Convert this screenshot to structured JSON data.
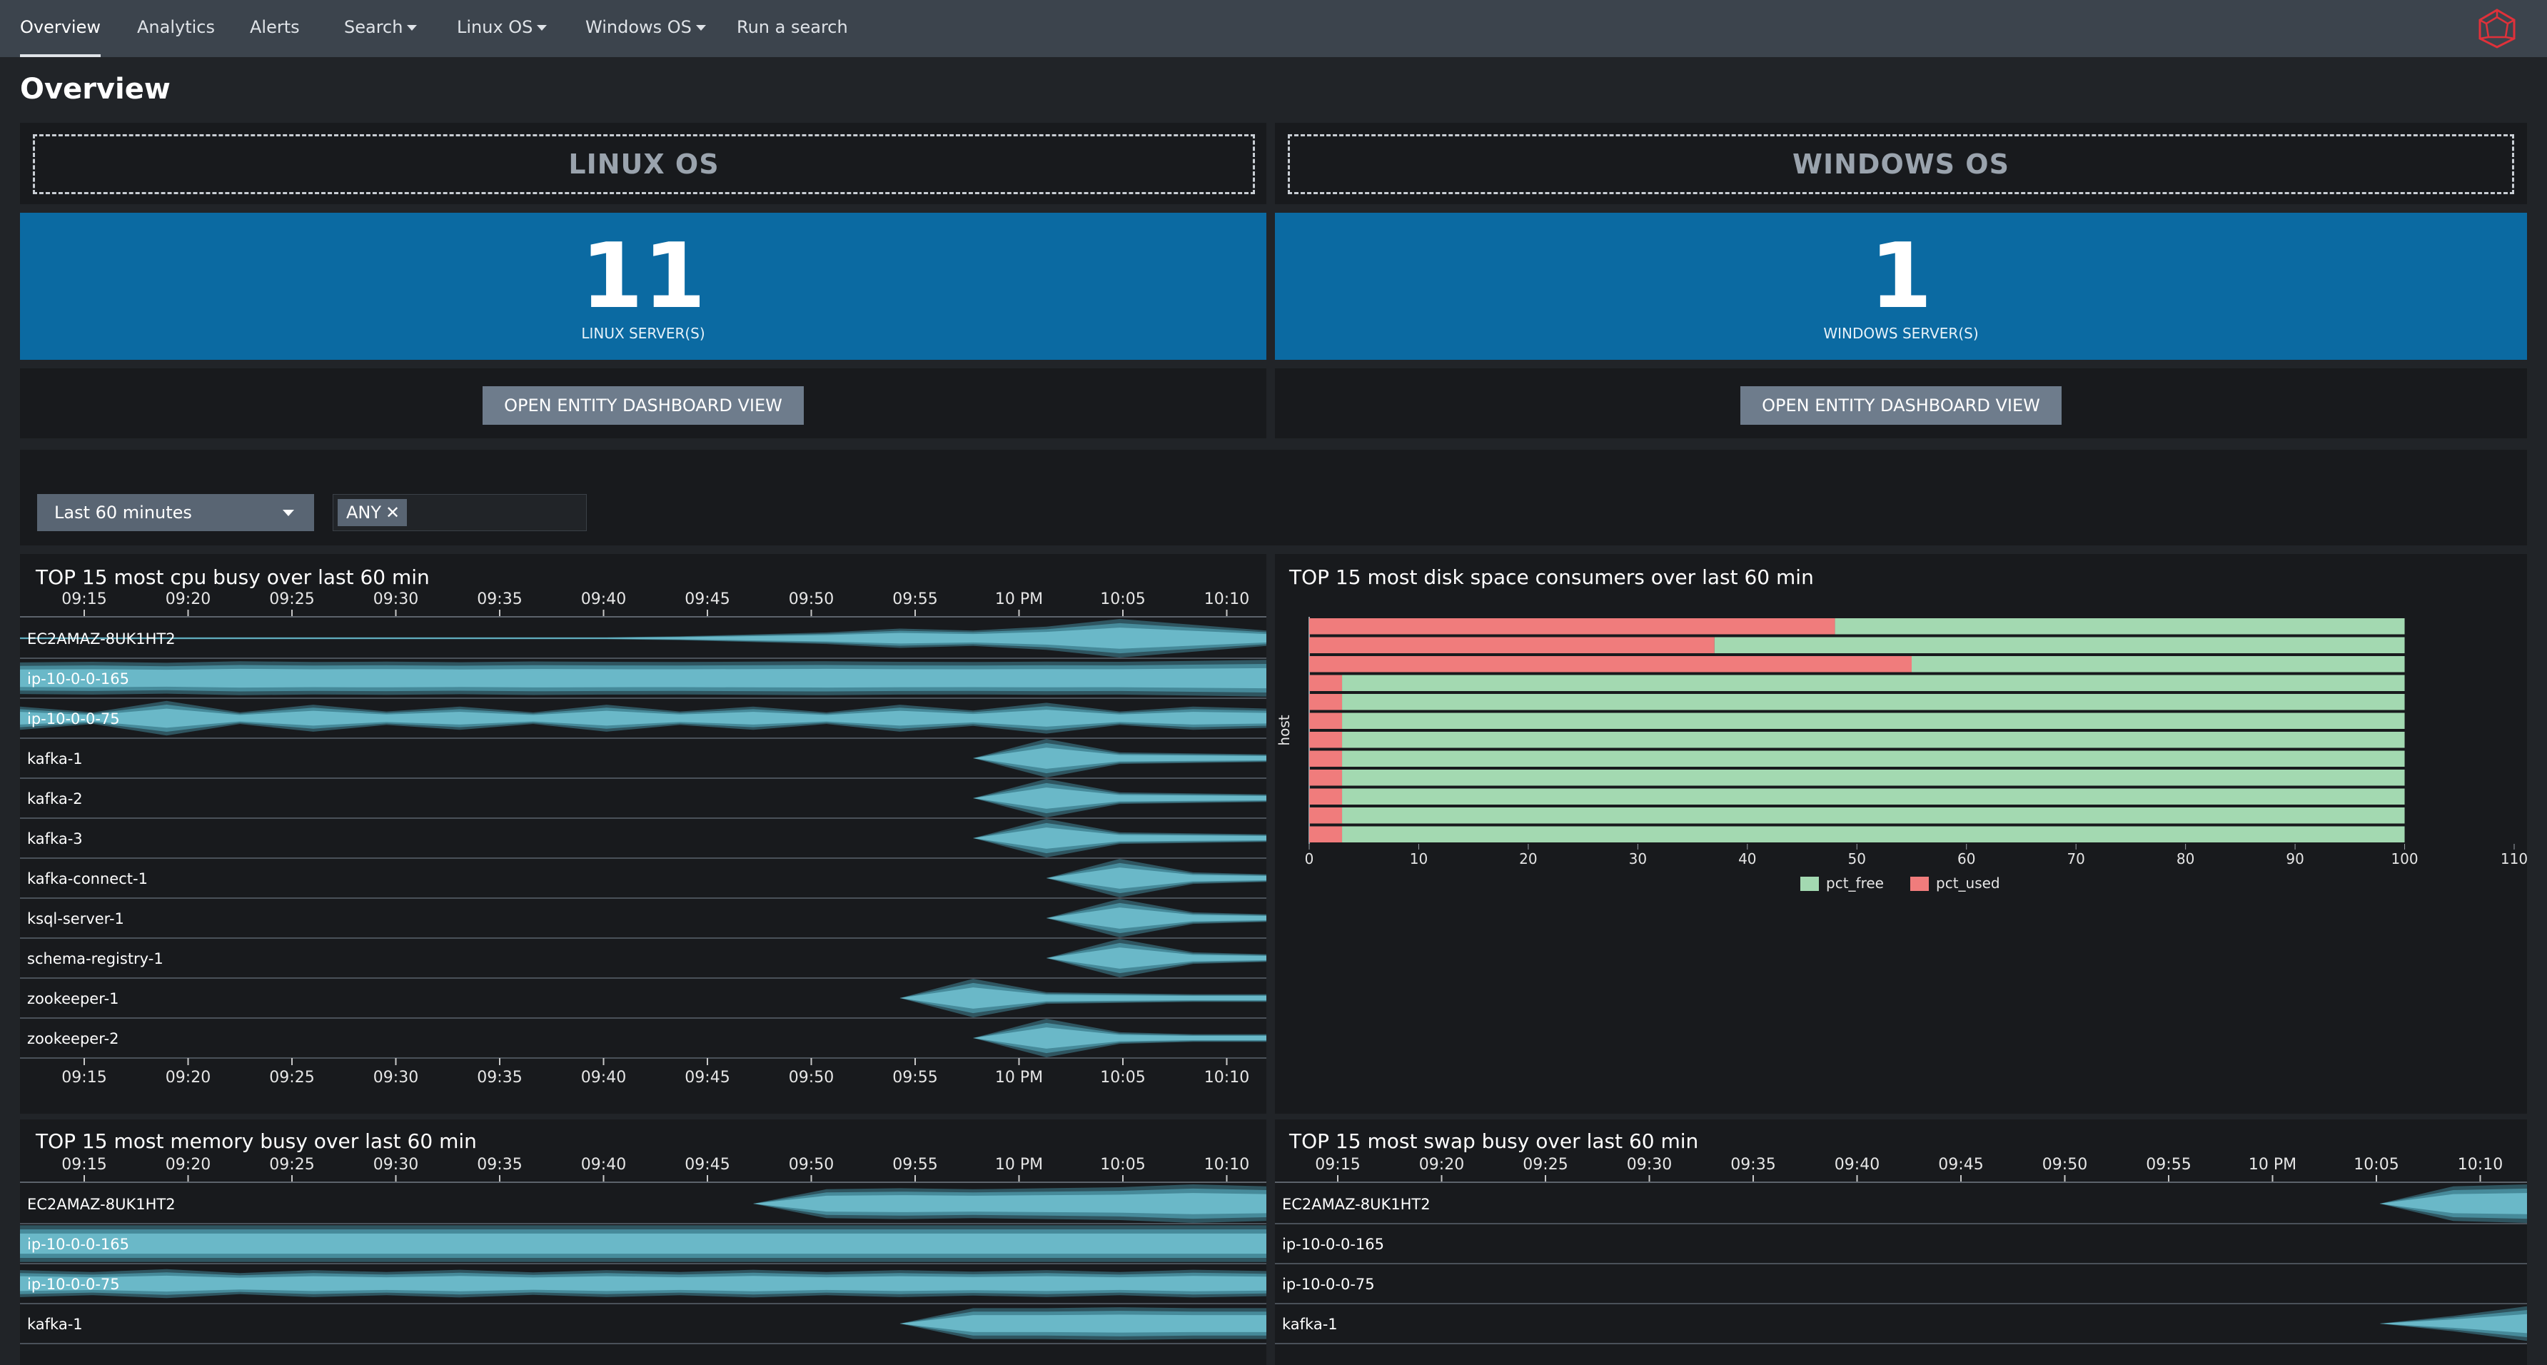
{
  "nav": {
    "tabs": [
      {
        "label": "Overview",
        "active": true
      },
      {
        "label": "Analytics"
      },
      {
        "label": "Alerts"
      },
      {
        "label": "Search",
        "dropdown": true
      },
      {
        "label": "Linux OS",
        "dropdown": true
      },
      {
        "label": "Windows OS",
        "dropdown": true
      },
      {
        "label": "Run a search"
      }
    ],
    "logo_icon": "splunk-logo-icon"
  },
  "page_title": "Overview",
  "linux": {
    "header": "LINUX OS",
    "count": "11",
    "count_label": "LINUX SERVER(S)",
    "button_label": "OPEN ENTITY DASHBOARD VIEW"
  },
  "windows": {
    "header": "WINDOWS OS",
    "count": "1",
    "count_label": "WINDOWS SERVER(S)",
    "button_label": "OPEN ENTITY DASHBOARD VIEW"
  },
  "filters": {
    "time_range": "Last 60 minutes",
    "host_token": "ANY"
  },
  "colors": {
    "accent": "#0b6aa2",
    "band_light": "#6ab8c8",
    "band_mid": "#468a9a",
    "band_dark": "#2f5560",
    "pct_free": "#a3d9b1",
    "pct_used": "#f07c7c"
  },
  "chart_data": [
    {
      "type": "area",
      "title": "TOP 15 most cpu busy over last 60 min",
      "time_ticks": [
        "09:15",
        "09:20",
        "09:25",
        "09:30",
        "09:35",
        "09:40",
        "09:45",
        "09:50",
        "09:55",
        "10 PM",
        "10:05",
        "10:10"
      ],
      "series": [
        {
          "name": "EC2AMAZ-8UK1HT2",
          "values": [
            0.05,
            0.05,
            0.05,
            0.05,
            0.05,
            0.05,
            0.05,
            0.05,
            0.05,
            0.1,
            0.2,
            0.3,
            0.5,
            0.4,
            0.6,
            1.0,
            0.7,
            0.4
          ]
        },
        {
          "name": "ip-10-0-0-165",
          "values": [
            0.82,
            0.85,
            0.8,
            0.88,
            0.84,
            0.86,
            0.83,
            0.87,
            0.85,
            0.84,
            0.86,
            0.88,
            0.85,
            0.84,
            0.86,
            0.85,
            0.9,
            0.95
          ]
        },
        {
          "name": "ip-10-0-0-75",
          "values": [
            0.6,
            0.3,
            0.9,
            0.3,
            0.7,
            0.35,
            0.6,
            0.3,
            0.7,
            0.35,
            0.6,
            0.3,
            0.7,
            0.4,
            0.8,
            0.35,
            0.6,
            0.5
          ]
        },
        {
          "name": "kafka-1",
          "values": [
            0,
            0,
            0,
            0,
            0,
            0,
            0,
            0,
            0,
            0,
            0,
            0,
            0,
            0,
            1.0,
            0.3,
            0.25,
            0.2
          ]
        },
        {
          "name": "kafka-2",
          "values": [
            0,
            0,
            0,
            0,
            0,
            0,
            0,
            0,
            0,
            0,
            0,
            0,
            0,
            0,
            1.0,
            0.3,
            0.25,
            0.2
          ]
        },
        {
          "name": "kafka-3",
          "values": [
            0,
            0,
            0,
            0,
            0,
            0,
            0,
            0,
            0,
            0,
            0,
            0,
            0,
            0,
            1.0,
            0.3,
            0.25,
            0.2
          ]
        },
        {
          "name": "kafka-connect-1",
          "values": [
            0,
            0,
            0,
            0,
            0,
            0,
            0,
            0,
            0,
            0,
            0,
            0,
            0,
            0,
            0,
            1.0,
            0.3,
            0.2
          ]
        },
        {
          "name": "ksql-server-1",
          "values": [
            0,
            0,
            0,
            0,
            0,
            0,
            0,
            0,
            0,
            0,
            0,
            0,
            0,
            0,
            0,
            1.0,
            0.3,
            0.2
          ]
        },
        {
          "name": "schema-registry-1",
          "values": [
            0,
            0,
            0,
            0,
            0,
            0,
            0,
            0,
            0,
            0,
            0,
            0,
            0,
            0,
            0,
            1.0,
            0.3,
            0.2
          ]
        },
        {
          "name": "zookeeper-1",
          "values": [
            0,
            0,
            0,
            0,
            0,
            0,
            0,
            0,
            0,
            0,
            0,
            0,
            0,
            1.0,
            0.3,
            0.25,
            0.2,
            0.2
          ]
        },
        {
          "name": "zookeeper-2",
          "values": [
            0,
            0,
            0,
            0,
            0,
            0,
            0,
            0,
            0,
            0,
            0,
            0,
            0,
            0,
            1.0,
            0.3,
            0.2,
            0.2
          ]
        }
      ]
    },
    {
      "type": "bar",
      "title": "TOP 15 most disk space consumers over last 60 min",
      "xlabel": "",
      "ylabel": "host",
      "xlim": [
        0,
        110
      ],
      "x_ticks": [
        0,
        10,
        20,
        30,
        40,
        50,
        60,
        70,
        80,
        90,
        100,
        110
      ],
      "legend": "bottom",
      "categories": [
        "",
        "",
        "",
        "",
        "",
        "",
        "",
        "",
        "",
        "",
        "",
        ""
      ],
      "series": [
        {
          "name": "pct_used",
          "values": [
            48,
            37,
            55,
            3,
            3,
            3,
            3,
            3,
            3,
            3,
            3,
            3
          ]
        },
        {
          "name": "pct_free",
          "values": [
            52,
            63,
            45,
            97,
            97,
            97,
            97,
            97,
            97,
            97,
            97,
            97
          ]
        }
      ]
    },
    {
      "type": "area",
      "title": "TOP 15 most memory busy over last 60 min",
      "time_ticks": [
        "09:15",
        "09:20",
        "09:25",
        "09:30",
        "09:35",
        "09:40",
        "09:45",
        "09:50",
        "09:55",
        "10 PM",
        "10:05",
        "10:10"
      ],
      "series": [
        {
          "name": "EC2AMAZ-8UK1HT2",
          "values": [
            0,
            0,
            0,
            0,
            0,
            0,
            0,
            0,
            0,
            0,
            0,
            0.75,
            0.8,
            0.75,
            0.8,
            0.85,
            1.0,
            0.9
          ]
        },
        {
          "name": "ip-10-0-0-165",
          "values": [
            0.95,
            0.95,
            0.95,
            0.95,
            0.95,
            0.95,
            0.95,
            0.95,
            0.95,
            0.95,
            0.95,
            0.95,
            0.95,
            0.95,
            0.95,
            0.95,
            0.95,
            0.95
          ]
        },
        {
          "name": "ip-10-0-0-75",
          "values": [
            0.7,
            0.6,
            0.75,
            0.55,
            0.7,
            0.6,
            0.72,
            0.58,
            0.7,
            0.6,
            0.72,
            0.6,
            0.7,
            0.62,
            0.7,
            0.6,
            0.72,
            0.65
          ]
        },
        {
          "name": "kafka-1",
          "values": [
            0,
            0,
            0,
            0,
            0,
            0,
            0,
            0,
            0,
            0,
            0,
            0,
            0,
            0.8,
            0.8,
            0.85,
            0.8,
            0.8
          ]
        }
      ]
    },
    {
      "type": "area",
      "title": "TOP 15 most swap busy over last 60 min",
      "time_ticks": [
        "09:15",
        "09:20",
        "09:25",
        "09:30",
        "09:35",
        "09:40",
        "09:45",
        "09:50",
        "09:55",
        "10 PM",
        "10:05",
        "10:10"
      ],
      "series": [
        {
          "name": "EC2AMAZ-8UK1HT2",
          "values": [
            0,
            0,
            0,
            0,
            0,
            0,
            0,
            0,
            0,
            0,
            0,
            0,
            0,
            0,
            0,
            0,
            0.9,
            1.0
          ]
        },
        {
          "name": "ip-10-0-0-165",
          "values": [
            0,
            0,
            0,
            0,
            0,
            0,
            0,
            0,
            0,
            0,
            0,
            0,
            0,
            0,
            0,
            0,
            0,
            0
          ]
        },
        {
          "name": "ip-10-0-0-75",
          "values": [
            0,
            0,
            0,
            0,
            0,
            0,
            0,
            0,
            0,
            0,
            0,
            0,
            0,
            0,
            0,
            0,
            0,
            0
          ]
        },
        {
          "name": "kafka-1",
          "values": [
            0,
            0,
            0,
            0,
            0,
            0,
            0,
            0,
            0,
            0,
            0,
            0,
            0,
            0,
            0,
            0,
            0.4,
            0.9
          ]
        }
      ]
    }
  ]
}
